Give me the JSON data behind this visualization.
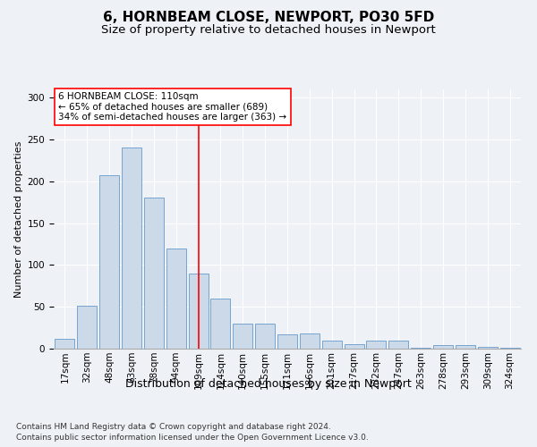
{
  "title": "6, HORNBEAM CLOSE, NEWPORT, PO30 5FD",
  "subtitle": "Size of property relative to detached houses in Newport",
  "xlabel": "Distribution of detached houses by size in Newport",
  "ylabel": "Number of detached properties",
  "bar_color": "#ccd9e8",
  "bar_edge_color": "#6699cc",
  "categories": [
    "17sqm",
    "32sqm",
    "48sqm",
    "63sqm",
    "78sqm",
    "94sqm",
    "109sqm",
    "124sqm",
    "140sqm",
    "155sqm",
    "171sqm",
    "186sqm",
    "201sqm",
    "217sqm",
    "232sqm",
    "247sqm",
    "263sqm",
    "278sqm",
    "293sqm",
    "309sqm",
    "324sqm"
  ],
  "values": [
    12,
    51,
    207,
    240,
    181,
    120,
    90,
    60,
    30,
    30,
    17,
    18,
    10,
    5,
    10,
    10,
    1,
    4,
    4,
    2,
    1
  ],
  "vline_x": 6.0,
  "vline_color": "red",
  "annotation_text": "6 HORNBEAM CLOSE: 110sqm\n← 65% of detached houses are smaller (689)\n34% of semi-detached houses are larger (363) →",
  "annotation_box_color": "white",
  "annotation_box_edge_color": "red",
  "ylim": [
    0,
    310
  ],
  "yticks": [
    0,
    50,
    100,
    150,
    200,
    250,
    300
  ],
  "footer_line1": "Contains HM Land Registry data © Crown copyright and database right 2024.",
  "footer_line2": "Contains public sector information licensed under the Open Government Licence v3.0.",
  "background_color": "#eef2f7",
  "plot_background_color": "#eef2f7",
  "grid_color": "white",
  "title_fontsize": 11,
  "subtitle_fontsize": 9.5,
  "tick_fontsize": 7.5,
  "ylabel_fontsize": 8,
  "xlabel_fontsize": 9,
  "annotation_fontsize": 7.5,
  "footer_fontsize": 6.5
}
